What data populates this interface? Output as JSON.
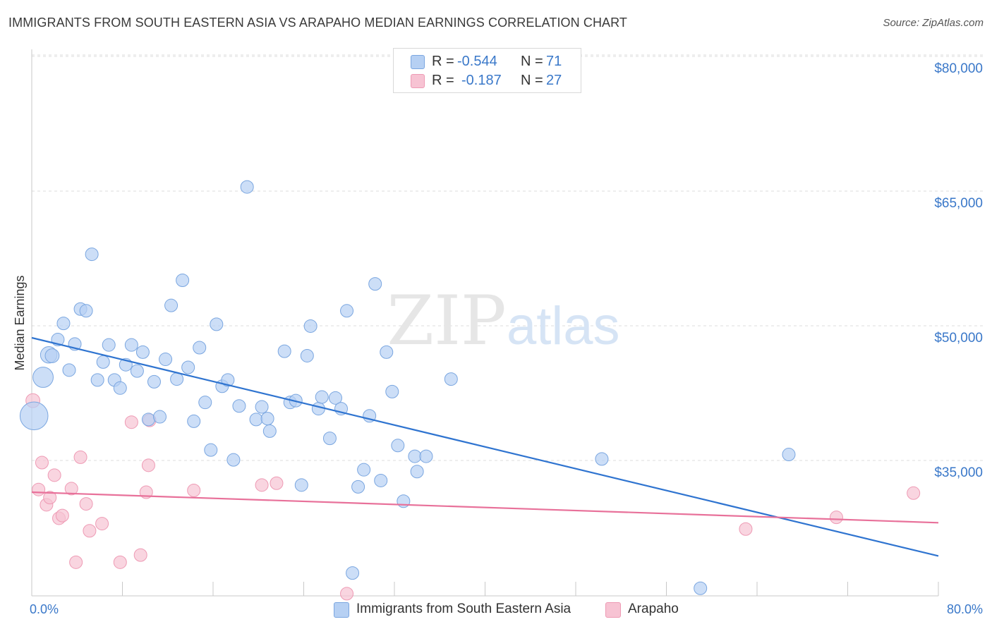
{
  "header": {
    "title": "IMMIGRANTS FROM SOUTH EASTERN ASIA VS ARAPAHO MEDIAN EARNINGS CORRELATION CHART",
    "source": "Source: ZipAtlas.com"
  },
  "watermark": {
    "zip": "ZIP",
    "atlas": "atlas"
  },
  "legend": {
    "rows": [
      {
        "r_label": "R =",
        "r_value": "-0.544",
        "n_label": "N =",
        "n_value": "71"
      },
      {
        "r_label": "R =",
        "r_value": "-0.187",
        "n_label": "N =",
        "n_value": "27"
      }
    ]
  },
  "colors": {
    "blue_fill": "#b6d0f3",
    "blue_stroke": "#7aa6e0",
    "blue_line": "#2f74d0",
    "pink_fill": "#f7c3d3",
    "pink_stroke": "#ee9ab4",
    "pink_line": "#e8719a",
    "axis_label": "#3a78c9",
    "grid": "#dcdcdc"
  },
  "chart_data": {
    "type": "scatter",
    "title": "IMMIGRANTS FROM SOUTH EASTERN ASIA VS ARAPAHO MEDIAN EARNINGS CORRELATION CHART",
    "xlabel": "",
    "ylabel": "Median Earnings",
    "xlim": [
      0,
      80
    ],
    "ylim": [
      20000,
      81500
    ],
    "x_tick_labels": [
      "0.0%",
      "80.0%"
    ],
    "y_ticks": [
      35000,
      50000,
      65000,
      80000
    ],
    "y_tick_labels": [
      "$35,000",
      "$50,000",
      "$65,000",
      "$80,000"
    ],
    "grid": true,
    "legend_position": "top-center",
    "series": [
      {
        "name": "Immigrants from South Eastern Asia",
        "color": "#b6d0f3",
        "trend": {
          "x": [
            0,
            80
          ],
          "y": [
            50000,
            25700
          ]
        },
        "points": [
          [
            0.2,
            41300,
            2.2
          ],
          [
            1.0,
            45600,
            1.6
          ],
          [
            1.5,
            48100,
            1.3
          ],
          [
            1.8,
            48000,
            1.1
          ],
          [
            2.3,
            49800,
            1.0
          ],
          [
            2.8,
            51600,
            1.0
          ],
          [
            3.3,
            46400,
            1.0
          ],
          [
            3.8,
            49300,
            1.0
          ],
          [
            4.3,
            53200,
            1.0
          ],
          [
            4.8,
            53000,
            1.0
          ],
          [
            5.3,
            59300,
            1.0
          ],
          [
            5.8,
            45300,
            1.0
          ],
          [
            6.3,
            47300,
            1.0
          ],
          [
            6.8,
            49200,
            1.0
          ],
          [
            7.3,
            45300,
            1.0
          ],
          [
            7.8,
            44400,
            1.0
          ],
          [
            8.3,
            47000,
            1.0
          ],
          [
            8.8,
            49200,
            1.0
          ],
          [
            9.3,
            46300,
            1.0
          ],
          [
            9.8,
            48400,
            1.0
          ],
          [
            10.3,
            40900,
            1.0
          ],
          [
            10.8,
            45100,
            1.0
          ],
          [
            11.3,
            41200,
            1.0
          ],
          [
            11.8,
            47600,
            1.0
          ],
          [
            12.3,
            53600,
            1.0
          ],
          [
            12.8,
            45400,
            1.0
          ],
          [
            13.3,
            56400,
            1.0
          ],
          [
            13.8,
            46700,
            1.0
          ],
          [
            14.3,
            40700,
            1.0
          ],
          [
            14.8,
            48900,
            1.0
          ],
          [
            15.3,
            42800,
            1.0
          ],
          [
            15.8,
            37500,
            1.0
          ],
          [
            16.3,
            51500,
            1.0
          ],
          [
            16.8,
            44600,
            1.0
          ],
          [
            17.3,
            45300,
            1.0
          ],
          [
            17.8,
            36400,
            1.0
          ],
          [
            18.3,
            42400,
            1.0
          ],
          [
            19.0,
            66800,
            1.0
          ],
          [
            19.8,
            40900,
            1.0
          ],
          [
            20.3,
            42300,
            1.0
          ],
          [
            20.8,
            41000,
            1.0
          ],
          [
            21.0,
            39600,
            1.0
          ],
          [
            22.3,
            48500,
            1.0
          ],
          [
            22.8,
            42800,
            1.0
          ],
          [
            23.3,
            43000,
            1.0
          ],
          [
            23.8,
            33600,
            1.0
          ],
          [
            24.3,
            48000,
            1.0
          ],
          [
            24.6,
            51300,
            1.0
          ],
          [
            25.3,
            42100,
            1.0
          ],
          [
            25.6,
            43400,
            1.0
          ],
          [
            26.3,
            38800,
            1.0
          ],
          [
            26.8,
            43300,
            1.0
          ],
          [
            27.3,
            42100,
            1.0
          ],
          [
            27.8,
            53000,
            1.0
          ],
          [
            28.3,
            23800,
            1.0
          ],
          [
            28.8,
            33400,
            1.0
          ],
          [
            29.3,
            35300,
            1.0
          ],
          [
            29.8,
            41300,
            1.0
          ],
          [
            30.3,
            56000,
            1.0
          ],
          [
            30.8,
            34100,
            1.0
          ],
          [
            31.3,
            48400,
            1.0
          ],
          [
            31.8,
            44000,
            1.0
          ],
          [
            32.3,
            38000,
            1.0
          ],
          [
            32.8,
            31800,
            1.0
          ],
          [
            33.8,
            36800,
            1.0
          ],
          [
            34.0,
            35100,
            1.0
          ],
          [
            34.8,
            36800,
            1.0
          ],
          [
            37.0,
            45400,
            1.0
          ],
          [
            50.3,
            36500,
            1.0
          ],
          [
            59.0,
            22100,
            1.0
          ],
          [
            66.8,
            37000,
            1.0
          ]
        ]
      },
      {
        "name": "Arapaho",
        "color": "#f7c3d3",
        "trend": {
          "x": [
            0,
            80
          ],
          "y": [
            32800,
            29400
          ]
        },
        "points": [
          [
            0.1,
            43000,
            1.1
          ],
          [
            0.6,
            33100,
            1.0
          ],
          [
            0.9,
            36100,
            1.0
          ],
          [
            1.3,
            31400,
            1.0
          ],
          [
            1.6,
            32200,
            1.0
          ],
          [
            2.0,
            34700,
            1.0
          ],
          [
            2.4,
            29900,
            1.0
          ],
          [
            2.7,
            30200,
            1.0
          ],
          [
            3.5,
            33200,
            1.0
          ],
          [
            3.9,
            25000,
            1.0
          ],
          [
            4.3,
            36700,
            1.0
          ],
          [
            4.8,
            31500,
            1.0
          ],
          [
            5.1,
            28500,
            1.0
          ],
          [
            6.2,
            29300,
            1.0
          ],
          [
            7.8,
            25000,
            1.0
          ],
          [
            8.8,
            40600,
            1.0
          ],
          [
            9.6,
            25800,
            1.0
          ],
          [
            10.1,
            32800,
            1.0
          ],
          [
            10.3,
            35800,
            1.0
          ],
          [
            10.4,
            40800,
            1.0
          ],
          [
            14.3,
            33000,
            1.0
          ],
          [
            20.3,
            33600,
            1.0
          ],
          [
            21.6,
            33800,
            1.0
          ],
          [
            27.8,
            21500,
            1.0
          ],
          [
            63.0,
            28700,
            1.0
          ],
          [
            71.0,
            30000,
            1.0
          ],
          [
            77.8,
            32700,
            1.0
          ]
        ]
      }
    ]
  }
}
